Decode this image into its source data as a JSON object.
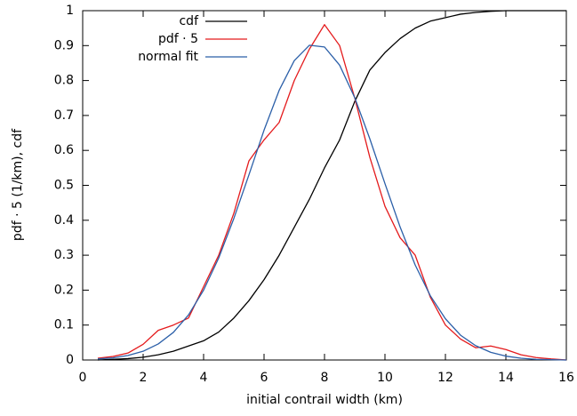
{
  "chart_data": {
    "type": "line",
    "xlabel": "initial contrail width (km)",
    "ylabel": "pdf · 5 (1/km), cdf",
    "x": [
      0.5,
      1,
      1.5,
      2,
      2.5,
      3,
      3.5,
      4,
      4.5,
      5,
      5.5,
      6,
      6.5,
      7,
      7.5,
      8,
      8.5,
      9,
      9.5,
      10,
      10.5,
      11,
      11.5,
      12,
      12.5,
      13,
      13.5,
      14,
      14.5,
      15,
      15.5,
      16
    ],
    "series": [
      {
        "name": "cdf",
        "color": "#000000",
        "values": [
          0,
          0.002,
          0.004,
          0.008,
          0.015,
          0.025,
          0.04,
          0.055,
          0.08,
          0.12,
          0.17,
          0.23,
          0.3,
          0.38,
          0.46,
          0.55,
          0.63,
          0.74,
          0.83,
          0.88,
          0.92,
          0.95,
          0.97,
          0.98,
          0.99,
          0.995,
          0.998,
          1,
          1,
          1,
          1,
          1
        ]
      },
      {
        "name": "pdf · 5",
        "color": "#e41a1c",
        "values": [
          0.005,
          0.01,
          0.02,
          0.045,
          0.085,
          0.1,
          0.12,
          0.21,
          0.3,
          0.42,
          0.57,
          0.63,
          0.68,
          0.8,
          0.89,
          0.96,
          0.9,
          0.75,
          0.58,
          0.44,
          0.35,
          0.3,
          0.18,
          0.1,
          0.06,
          0.035,
          0.04,
          0.03,
          0.015,
          0.007,
          0.003,
          0
        ]
      },
      {
        "name": "normal fit",
        "color": "#2b5fa8",
        "values": [
          0.003,
          0.006,
          0.013,
          0.025,
          0.046,
          0.079,
          0.129,
          0.2,
          0.292,
          0.405,
          0.53,
          0.658,
          0.772,
          0.857,
          0.901,
          0.896,
          0.844,
          0.751,
          0.633,
          0.505,
          0.381,
          0.272,
          0.184,
          0.118,
          0.071,
          0.041,
          0.022,
          0.011,
          0.005,
          0.002,
          0.001,
          0
        ]
      }
    ],
    "xlim": [
      0,
      16
    ],
    "xticks": [
      0,
      2,
      4,
      6,
      8,
      10,
      12,
      14,
      16
    ],
    "ylim": [
      0,
      1
    ],
    "yticks": [
      0,
      0.1,
      0.2,
      0.3,
      0.4,
      0.5,
      0.6,
      0.7,
      0.8,
      0.9,
      1
    ],
    "legend": "top-left"
  }
}
